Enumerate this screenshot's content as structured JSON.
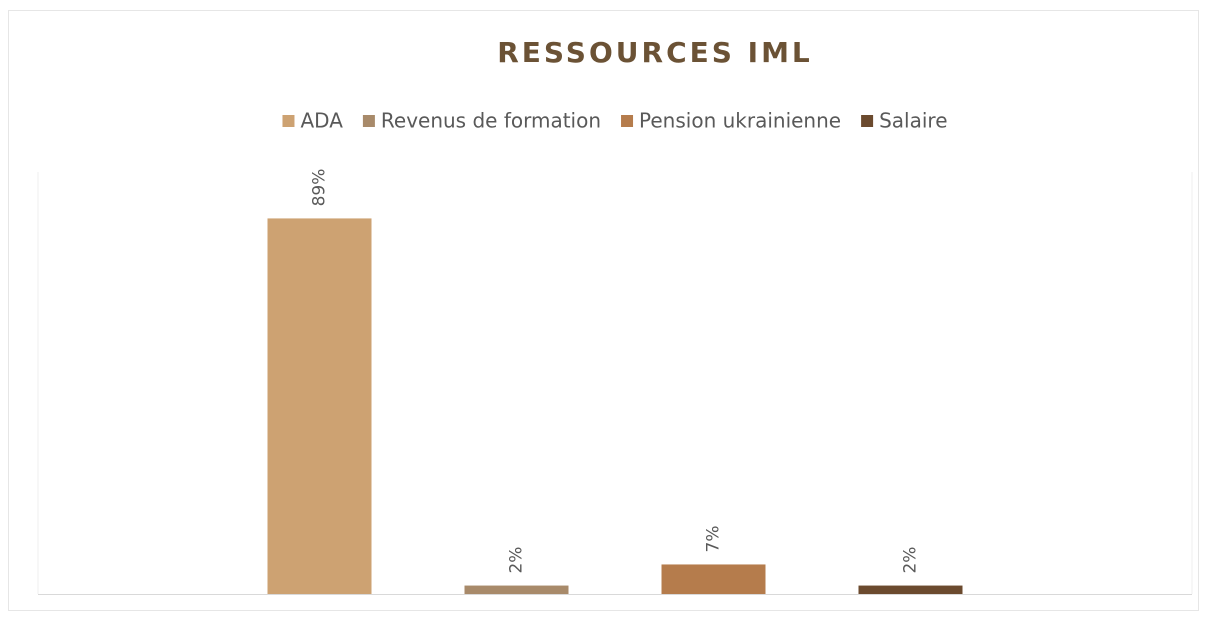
{
  "chart_data": {
    "type": "bar",
    "title": "RESSOURCES IML",
    "categories": [
      null
    ],
    "series": [
      {
        "name": "ADA",
        "color": "#cda272",
        "values": [
          89
        ],
        "value_labels": [
          "89%"
        ]
      },
      {
        "name": "Revenus de formation",
        "color": "#a88a6a",
        "values": [
          2
        ],
        "value_labels": [
          "2%"
        ]
      },
      {
        "name": "Pension ukrainienne",
        "color": "#b57c4c",
        "values": [
          7
        ],
        "value_labels": [
          "7%"
        ]
      },
      {
        "name": "Salaire",
        "color": "#6b4a2e",
        "values": [
          2
        ],
        "value_labels": [
          "2%"
        ]
      }
    ],
    "ylim": [
      0,
      100
    ],
    "legend": "top"
  }
}
